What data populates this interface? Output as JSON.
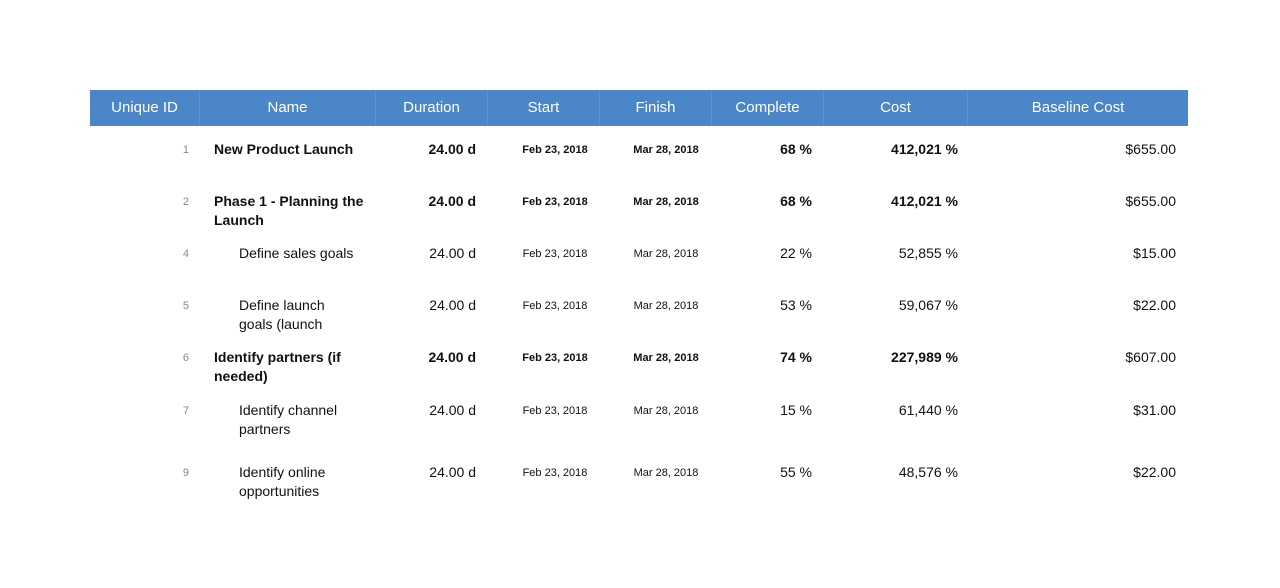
{
  "table": {
    "columns": [
      "Unique ID",
      "Name",
      "Duration",
      "Start",
      "Finish",
      "Complete",
      "Cost",
      "Baseline Cost"
    ],
    "rows": [
      {
        "id": "1",
        "name": "New Product Launch",
        "duration": "24.00 d",
        "start": "Feb 23, 2018",
        "finish": "Mar 28, 2018",
        "complete": "68 %",
        "cost": "412,021 %",
        "baseline_cost": "$655.00",
        "summary": true
      },
      {
        "id": "2",
        "name": "Phase 1 - Planning the Launch",
        "duration": "24.00 d",
        "start": "Feb 23, 2018",
        "finish": "Mar 28, 2018",
        "complete": "68 %",
        "cost": "412,021 %",
        "baseline_cost": "$655.00",
        "summary": true
      },
      {
        "id": "4",
        "name": "Define sales goals",
        "duration": "24.00 d",
        "start": "Feb 23, 2018",
        "finish": "Mar 28, 2018",
        "complete": "22 %",
        "cost": "52,855 %",
        "baseline_cost": "$15.00",
        "summary": false
      },
      {
        "id": "5",
        "name": "Define launch goals (launch",
        "duration": "24.00 d",
        "start": "Feb 23, 2018",
        "finish": "Mar 28, 2018",
        "complete": "53 %",
        "cost": "59,067 %",
        "baseline_cost": "$22.00",
        "summary": false
      },
      {
        "id": "6",
        "name": "Identify partners (if needed)",
        "duration": "24.00 d",
        "start": "Feb 23, 2018",
        "finish": "Mar 28, 2018",
        "complete": "74 %",
        "cost": "227,989 %",
        "baseline_cost": "$607.00",
        "summary": true
      },
      {
        "id": "7",
        "name": "Identify channel partners",
        "duration": "24.00 d",
        "start": "Feb 23, 2018",
        "finish": "Mar 28, 2018",
        "complete": "15 %",
        "cost": "61,440 %",
        "baseline_cost": "$31.00",
        "summary": false
      },
      {
        "id": "9",
        "name": "Identify online opportunities",
        "duration": "24.00 d",
        "start": "Feb 23, 2018",
        "finish": "Mar 28, 2018",
        "complete": "55 %",
        "cost": "48,576 %",
        "baseline_cost": "$22.00",
        "summary": false
      }
    ]
  }
}
